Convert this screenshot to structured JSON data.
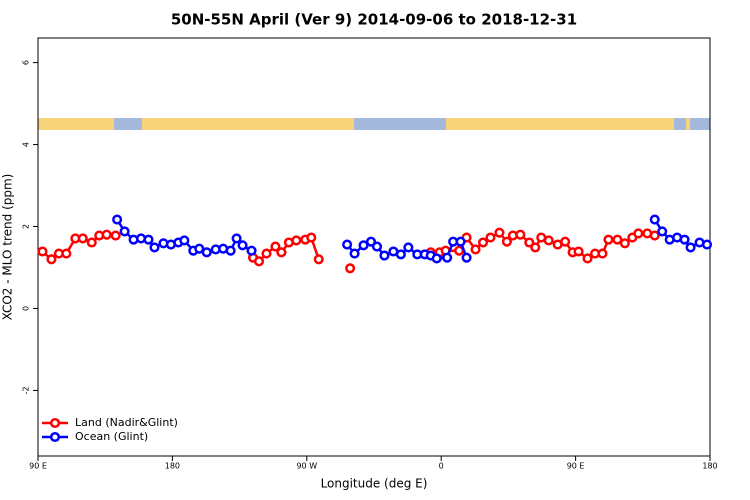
{
  "chart_data": {
    "type": "line",
    "title": "50N-55N April (Ver 9)   2014-09-06 to 2018-12-31",
    "x_label": "Longitude (deg E)",
    "y_label": "XCO2 - MLO trend (ppm)",
    "xlim": [
      90,
      540
    ],
    "xticks": [
      {
        "value": 90,
        "label": "90 E"
      },
      180,
      {
        "value": 270,
        "label": "90 W"
      },
      {
        "value": 360,
        "label": "0"
      },
      {
        "value": 450,
        "label": "90 E"
      },
      {
        "value": 540,
        "label": "180"
      }
    ],
    "ylim": [
      -3.6,
      6.6
    ],
    "yticks": [
      -2,
      0,
      2,
      4,
      6
    ],
    "legend": "bottom-left",
    "series": [
      {
        "name": "Land (Nadir&Glint)",
        "color": "#ff0000",
        "x": [
          93,
          99,
          104,
          109,
          115,
          120,
          126,
          131,
          136,
          142,
          null,
          234,
          238,
          243,
          249,
          253,
          258,
          263,
          269,
          273,
          278,
          null,
          299,
          null,
          353,
          359,
          363,
          372,
          377,
          383,
          388,
          393,
          399,
          404,
          408,
          413,
          419,
          423,
          427,
          432,
          438,
          443,
          448,
          452,
          458,
          463,
          468,
          472,
          478,
          483,
          488,
          492,
          498,
          503
        ],
        "values": [
          1.39,
          1.2,
          1.34,
          1.34,
          1.71,
          1.71,
          1.61,
          1.78,
          1.8,
          1.78,
          null,
          1.24,
          1.15,
          1.34,
          1.51,
          1.37,
          1.61,
          1.66,
          1.68,
          1.73,
          1.2,
          null,
          0.98,
          null,
          1.37,
          1.37,
          1.41,
          1.41,
          1.73,
          1.44,
          1.61,
          1.73,
          1.85,
          1.63,
          1.78,
          1.8,
          1.61,
          1.49,
          1.73,
          1.66,
          1.56,
          1.63,
          1.37,
          1.39,
          1.22,
          1.34,
          1.34,
          1.68,
          1.68,
          1.59,
          1.73,
          1.83,
          1.83,
          1.78
        ]
      },
      {
        "name": "Ocean (Glint)",
        "color": "#0000ff",
        "x": [
          143,
          148,
          154,
          159,
          164,
          168,
          174,
          179,
          184,
          188,
          194,
          198,
          203,
          209,
          214,
          219,
          223,
          227,
          233,
          null,
          297,
          302,
          308,
          313,
          317,
          322,
          328,
          333,
          338,
          344,
          349,
          353,
          357,
          364,
          368,
          373,
          377,
          null,
          503,
          508,
          513,
          518,
          523,
          527,
          533,
          538
        ],
        "values": [
          2.17,
          1.88,
          1.68,
          1.71,
          1.68,
          1.49,
          1.59,
          1.56,
          1.61,
          1.66,
          1.41,
          1.46,
          1.37,
          1.44,
          1.46,
          1.41,
          1.71,
          1.54,
          1.41,
          null,
          1.56,
          1.34,
          1.54,
          1.63,
          1.51,
          1.29,
          1.39,
          1.32,
          1.49,
          1.32,
          1.32,
          1.29,
          1.22,
          1.24,
          1.63,
          1.63,
          1.24,
          null,
          2.17,
          1.88,
          1.68,
          1.73,
          1.68,
          1.49,
          1.61,
          1.56
        ]
      }
    ]
  }
}
